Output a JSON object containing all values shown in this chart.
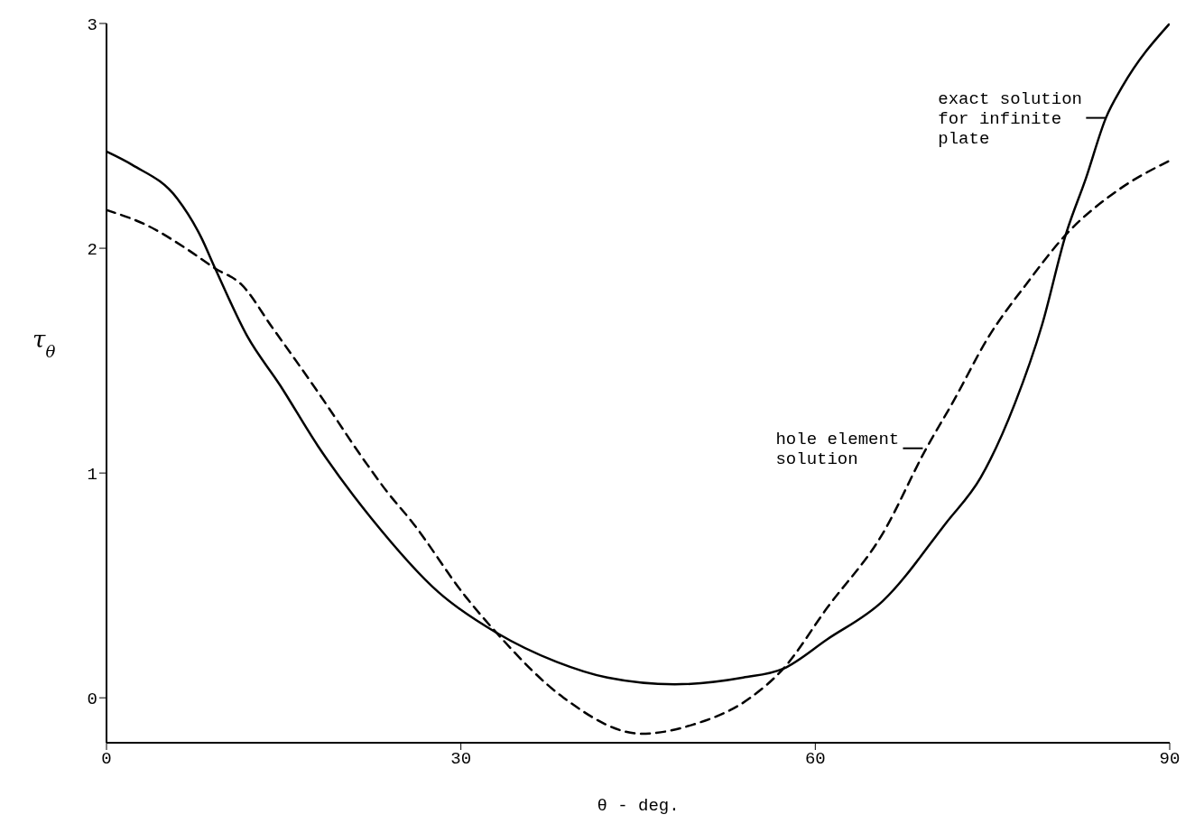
{
  "chart_data": {
    "type": "line",
    "xlabel": "θ - deg.",
    "ylabel": "τ$_{θ}$",
    "xlim": [
      0,
      90
    ],
    "xticks": [
      0,
      30,
      60,
      90
    ],
    "ylim": [
      -0.2,
      3
    ],
    "yticks": [
      0,
      1,
      2,
      3
    ],
    "grid": false,
    "legend": false,
    "marker": "none",
    "series": [
      {
        "color": "#000000",
        "line_style": "solid",
        "x": [
          0,
          2.2,
          6,
          8,
          9.2,
          11.9,
          14.7,
          17.9,
          20.9,
          22.4,
          28.1,
          33,
          38.1,
          42.4,
          48.1,
          53.9,
          57.3,
          61,
          65.7,
          71.1,
          74,
          76.9,
          79.2,
          81.2,
          82.9,
          84.6,
          86,
          90
        ],
        "values": [
          2.43,
          2.37,
          2.22,
          2.05,
          1.91,
          1.61,
          1.39,
          1.12,
          0.9,
          0.8,
          0.47,
          0.29,
          0.16,
          0.09,
          0.06,
          0.09,
          0.13,
          0.26,
          0.43,
          0.78,
          0.98,
          1.31,
          1.66,
          2.06,
          2.31,
          2.58,
          2.72,
          3
        ]
      },
      {
        "color": "#000000",
        "line_style": "dashed",
        "x": [
          0,
          3.5,
          6.7,
          9.2,
          11.4,
          14,
          17.9,
          21.9,
          23.7,
          25.9,
          30.4,
          33,
          38.7,
          45.3,
          49.6,
          54.5,
          57.3,
          61,
          65.7,
          69.4,
          71.7,
          74.6,
          78,
          81.2,
          85.4,
          90
        ],
        "values": [
          2.17,
          2.1,
          2,
          1.91,
          1.84,
          1.65,
          1.36,
          1.05,
          0.92,
          0.78,
          0.45,
          0.29,
          0,
          -0.16,
          -0.12,
          0,
          0.13,
          0.4,
          0.73,
          1.11,
          1.32,
          1.6,
          1.85,
          2.06,
          2.25,
          2.39
        ]
      }
    ],
    "annotations": [
      {
        "text": "exact solution\nfor infinite\nplate",
        "x": 84.6,
        "y": 2.58
      },
      {
        "text": "hole element\nsolution",
        "x": 69.1,
        "y": 1.11
      }
    ]
  }
}
